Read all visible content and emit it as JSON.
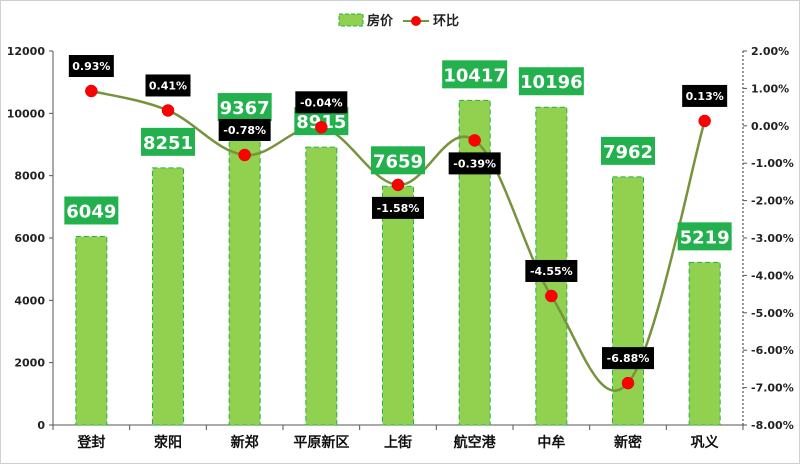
{
  "chart_data": {
    "type": "bar+line",
    "categories": [
      "登封",
      "荥阳",
      "新郑",
      "平原新区",
      "上街",
      "航空港",
      "中牟",
      "新密",
      "巩义"
    ],
    "series": [
      {
        "name": "房价",
        "type": "bar",
        "axis": "left",
        "values": [
          6049,
          8251,
          9367,
          8915,
          7659,
          10417,
          10196,
          7962,
          5219
        ],
        "labels": [
          "6049",
          "8251",
          "9367",
          "8915",
          "7659",
          "10417",
          "10196",
          "7962",
          "5219"
        ],
        "color": "#92d050",
        "label_color": "#22b14c"
      },
      {
        "name": "环比",
        "type": "line",
        "axis": "right",
        "values": [
          0.93,
          0.41,
          -0.78,
          -0.04,
          -1.58,
          -0.39,
          -4.55,
          -6.88,
          0.13
        ],
        "labels": [
          "0.93%",
          "0.41%",
          "-0.78%",
          "-0.04%",
          "-1.58%",
          "-0.39%",
          "-4.55%",
          "-6.88%",
          "0.13%"
        ],
        "line_color": "#77933c",
        "marker_color": "#ff0000",
        "label_color": "#000000"
      }
    ],
    "y_left": {
      "min": 0,
      "max": 12000,
      "ticks": [
        "0",
        "2000",
        "4000",
        "6000",
        "8000",
        "10000",
        "12000"
      ],
      "tick_values": [
        0,
        2000,
        4000,
        6000,
        8000,
        10000,
        12000
      ]
    },
    "y_right": {
      "min": -8,
      "max": 2,
      "ticks": [
        "-8.00%",
        "-7.00%",
        "-6.00%",
        "-5.00%",
        "-4.00%",
        "-3.00%",
        "-2.00%",
        "-1.00%",
        "0.00%",
        "1.00%",
        "2.00%"
      ],
      "tick_values": [
        -8,
        -7,
        -6,
        -5,
        -4,
        -3,
        -2,
        -1,
        0,
        1,
        2
      ]
    },
    "legend_position": "top",
    "grid": false
  }
}
